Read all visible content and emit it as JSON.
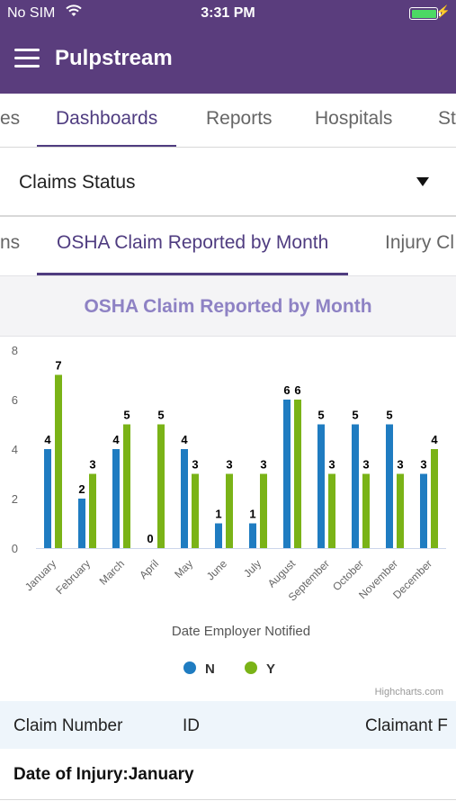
{
  "status_bar": {
    "carrier": "No SIM",
    "time": "3:31 PM",
    "wifi_icon": "wifi-icon",
    "battery_icon": "battery-icon"
  },
  "app_bar": {
    "title": "Pulpstream",
    "menu_icon": "hamburger-icon"
  },
  "nav_tabs": [
    {
      "label": "es"
    },
    {
      "label": "Dashboards",
      "active": true
    },
    {
      "label": "Reports"
    },
    {
      "label": "Hospitals"
    },
    {
      "label": "St"
    }
  ],
  "dropdown": {
    "selected": "Claims Status"
  },
  "sub_tabs": [
    {
      "label": "ns"
    },
    {
      "label": "OSHA Claim Reported by Month",
      "active": true
    },
    {
      "label": "Injury Cl"
    }
  ],
  "chart_header": "OSHA Claim Reported by Month",
  "chart_data": {
    "type": "bar",
    "categories": [
      "January",
      "February",
      "March",
      "April",
      "May",
      "June",
      "July",
      "August",
      "September",
      "October",
      "November",
      "December"
    ],
    "series": [
      {
        "name": "N",
        "color": "#1f7cc1",
        "values": [
          4,
          2,
          4,
          0,
          4,
          1,
          1,
          6,
          5,
          5,
          5,
          3
        ]
      },
      {
        "name": "Y",
        "color": "#7ab317",
        "values": [
          7,
          3,
          5,
          5,
          3,
          3,
          3,
          6,
          3,
          3,
          3,
          4
        ]
      }
    ],
    "xlabel": "Date Employer Notified",
    "ylabel": "",
    "ylim": [
      0,
      8
    ],
    "yticks": [
      "0",
      "2",
      "4",
      "6",
      "8"
    ],
    "grid": false,
    "legend": "bottom-center",
    "credits": "Highcharts.com"
  },
  "table": {
    "columns": [
      "Claim Number",
      "ID",
      "Claimant F"
    ],
    "group_row": "Date of Injury:January"
  }
}
